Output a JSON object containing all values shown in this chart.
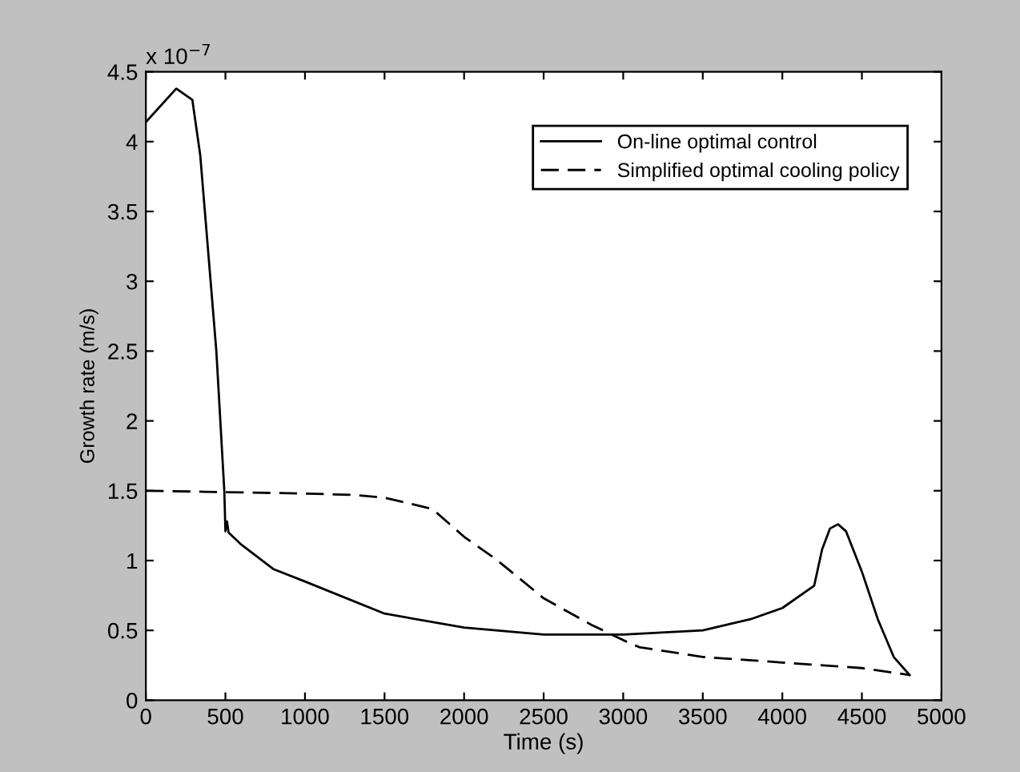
{
  "chart_data": {
    "type": "line",
    "xlabel": "Time (s)",
    "ylabel": "Growth rate (m/s)",
    "annotations": [
      "x 10$^{−7}$"
    ],
    "xlim": [
      0,
      5000
    ],
    "xticks": [
      0,
      500,
      1000,
      1500,
      2000,
      2500,
      3000,
      3500,
      4000,
      4500,
      5000
    ],
    "ylim": [
      0,
      4.5
    ],
    "yticks": [
      0,
      0.5,
      1,
      1.5,
      2,
      2.5,
      3,
      3.5,
      4,
      4.5
    ],
    "grid": false,
    "legend": "top right",
    "series": [
      {
        "name": "On-line optimal control",
        "color": "#000000",
        "line_style": "solid",
        "x": [
          0,
          191,
          292,
          342,
          443,
          493,
          500,
          510,
          520,
          594,
          800,
          1000,
          1500,
          2000,
          2500,
          3000,
          3500,
          3800,
          4000,
          4200,
          4250,
          4300,
          4350,
          4400,
          4500,
          4600,
          4700,
          4800
        ],
        "values": [
          4.14,
          4.38,
          4.3,
          3.9,
          2.5,
          1.5,
          1.21,
          1.28,
          1.2,
          1.12,
          0.94,
          0.85,
          0.62,
          0.52,
          0.47,
          0.47,
          0.5,
          0.58,
          0.66,
          0.82,
          1.08,
          1.23,
          1.26,
          1.21,
          0.92,
          0.58,
          0.31,
          0.18
        ]
      },
      {
        "name": "Simplified optimal cooling policy",
        "color": "#000000",
        "line_style": "dashed",
        "x": [
          0,
          500,
          1000,
          1300,
          1500,
          1800,
          2000,
          2200,
          2500,
          2800,
          3000,
          3100,
          3500,
          4000,
          4500,
          4800
        ],
        "values": [
          1.5,
          1.49,
          1.48,
          1.47,
          1.45,
          1.37,
          1.17,
          1.01,
          0.73,
          0.54,
          0.43,
          0.38,
          0.31,
          0.27,
          0.23,
          0.18
        ]
      }
    ]
  }
}
